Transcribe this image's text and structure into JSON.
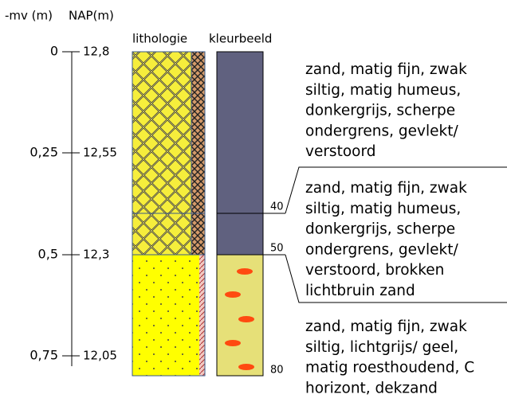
{
  "headers": {
    "depth": "-mv (m)",
    "nap": "NAP(m)",
    "lithology": "lithologie",
    "color": "kleurbeeld"
  },
  "axis": {
    "depth_labels": [
      "0",
      "0,25",
      "0,5",
      "0,75"
    ],
    "nap_labels": [
      "12,8",
      "12,55",
      "12,3",
      "12,05"
    ]
  },
  "layers": [
    {
      "bottom": "40",
      "description": [
        "zand, matig fijn, zwak",
        "siltig, matig humeus,",
        "donkergrijs, scherpe",
        "ondergrens, gevlekt/",
        "verstoord"
      ]
    },
    {
      "bottom": "50",
      "description": [
        "zand, matig fijn, zwak",
        "siltig, matig humeus,",
        "donkergrijs, scherpe",
        "ondergrens, gevlekt/",
        "verstoord, brokken",
        "lichtbruin zand"
      ]
    },
    {
      "bottom": "80",
      "description": [
        "zand, matig fijn, zwak",
        "siltig, lichtgrijs/ geel,",
        "matig roesthoudend, C",
        "horizont, dekzand"
      ]
    }
  ]
}
